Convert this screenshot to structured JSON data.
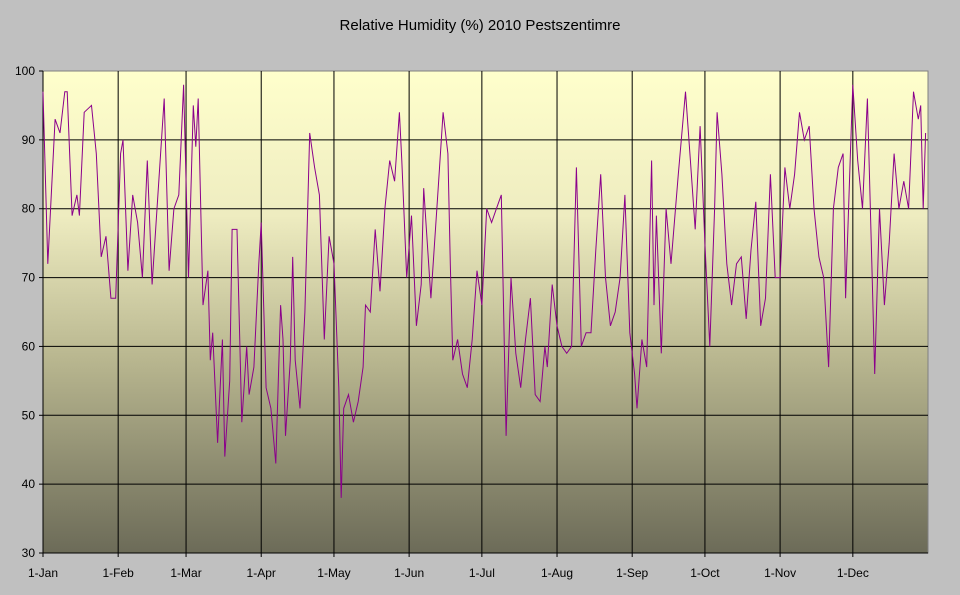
{
  "chart_data": {
    "type": "line",
    "title": "Relative Humidity (%) 2010 Pestszentimre",
    "xlabel": "",
    "ylabel": "",
    "ylim": [
      30,
      100
    ],
    "yticks": [
      30,
      40,
      50,
      60,
      70,
      80,
      90,
      100
    ],
    "xlim": [
      0,
      365
    ],
    "xticks": [
      {
        "day": 0,
        "label": "1-Jan"
      },
      {
        "day": 31,
        "label": "1-Feb"
      },
      {
        "day": 59,
        "label": "1-Mar"
      },
      {
        "day": 90,
        "label": "1-Apr"
      },
      {
        "day": 120,
        "label": "1-May"
      },
      {
        "day": 151,
        "label": "1-Jun"
      },
      {
        "day": 181,
        "label": "1-Jul"
      },
      {
        "day": 212,
        "label": "1-Aug"
      },
      {
        "day": 243,
        "label": "1-Sep"
      },
      {
        "day": 273,
        "label": "1-Oct"
      },
      {
        "day": 304,
        "label": "1-Nov"
      },
      {
        "day": 334,
        "label": "1-Dec"
      }
    ],
    "grid": true,
    "legend": "none",
    "series": [
      {
        "name": "Relative Humidity (%)",
        "color": "#8b008b",
        "points": [
          [
            0,
            97
          ],
          [
            2,
            72
          ],
          [
            5,
            93
          ],
          [
            7,
            91
          ],
          [
            9,
            97
          ],
          [
            10,
            97
          ],
          [
            12,
            79
          ],
          [
            14,
            82
          ],
          [
            15,
            79
          ],
          [
            17,
            94
          ],
          [
            20,
            95
          ],
          [
            22,
            88
          ],
          [
            24,
            73
          ],
          [
            26,
            76
          ],
          [
            28,
            67
          ],
          [
            30,
            67
          ],
          [
            32,
            88
          ],
          [
            33,
            90
          ],
          [
            35,
            71
          ],
          [
            37,
            82
          ],
          [
            39,
            78
          ],
          [
            41,
            70
          ],
          [
            43,
            87
          ],
          [
            45,
            69
          ],
          [
            47,
            80
          ],
          [
            50,
            96
          ],
          [
            52,
            71
          ],
          [
            54,
            80
          ],
          [
            56,
            82
          ],
          [
            58,
            98
          ],
          [
            60,
            70
          ],
          [
            62,
            95
          ],
          [
            63,
            89
          ],
          [
            64,
            96
          ],
          [
            66,
            66
          ],
          [
            68,
            71
          ],
          [
            69,
            58
          ],
          [
            70,
            62
          ],
          [
            72,
            46
          ],
          [
            74,
            61
          ],
          [
            75,
            44
          ],
          [
            77,
            55
          ],
          [
            78,
            77
          ],
          [
            80,
            77
          ],
          [
            82,
            49
          ],
          [
            84,
            60
          ],
          [
            85,
            53
          ],
          [
            87,
            57
          ],
          [
            89,
            72
          ],
          [
            90,
            78
          ],
          [
            92,
            54
          ],
          [
            94,
            51
          ],
          [
            96,
            43
          ],
          [
            98,
            66
          ],
          [
            99,
            61
          ],
          [
            100,
            47
          ],
          [
            102,
            58
          ],
          [
            103,
            73
          ],
          [
            104,
            58
          ],
          [
            106,
            51
          ],
          [
            108,
            65
          ],
          [
            110,
            91
          ],
          [
            112,
            86
          ],
          [
            114,
            82
          ],
          [
            116,
            61
          ],
          [
            118,
            76
          ],
          [
            120,
            72
          ],
          [
            122,
            54
          ],
          [
            123,
            38
          ],
          [
            124,
            51
          ],
          [
            126,
            53
          ],
          [
            128,
            49
          ],
          [
            130,
            52
          ],
          [
            132,
            57
          ],
          [
            133,
            66
          ],
          [
            135,
            65
          ],
          [
            137,
            77
          ],
          [
            139,
            68
          ],
          [
            141,
            80
          ],
          [
            143,
            87
          ],
          [
            145,
            84
          ],
          [
            147,
            94
          ],
          [
            148,
            87
          ],
          [
            150,
            70
          ],
          [
            152,
            79
          ],
          [
            154,
            63
          ],
          [
            156,
            69
          ],
          [
            157,
            83
          ],
          [
            160,
            67
          ],
          [
            163,
            83
          ],
          [
            165,
            94
          ],
          [
            167,
            88
          ],
          [
            168,
            72
          ],
          [
            169,
            58
          ],
          [
            171,
            61
          ],
          [
            173,
            56
          ],
          [
            175,
            54
          ],
          [
            177,
            61
          ],
          [
            179,
            71
          ],
          [
            181,
            66
          ],
          [
            183,
            80
          ],
          [
            185,
            78
          ],
          [
            187,
            80
          ],
          [
            189,
            82
          ],
          [
            191,
            47
          ],
          [
            193,
            70
          ],
          [
            195,
            59
          ],
          [
            197,
            54
          ],
          [
            199,
            61
          ],
          [
            201,
            67
          ],
          [
            203,
            53
          ],
          [
            205,
            52
          ],
          [
            207,
            60
          ],
          [
            208,
            57
          ],
          [
            210,
            69
          ],
          [
            212,
            63
          ],
          [
            214,
            60
          ],
          [
            216,
            59
          ],
          [
            218,
            60
          ],
          [
            220,
            86
          ],
          [
            222,
            60
          ],
          [
            224,
            62
          ],
          [
            226,
            62
          ],
          [
            228,
            74
          ],
          [
            230,
            85
          ],
          [
            232,
            70
          ],
          [
            234,
            63
          ],
          [
            236,
            65
          ],
          [
            238,
            70
          ],
          [
            240,
            82
          ],
          [
            242,
            62
          ],
          [
            244,
            56
          ],
          [
            245,
            51
          ],
          [
            247,
            61
          ],
          [
            249,
            57
          ],
          [
            251,
            87
          ],
          [
            252,
            66
          ],
          [
            253,
            79
          ],
          [
            255,
            59
          ],
          [
            257,
            80
          ],
          [
            259,
            72
          ],
          [
            262,
            85
          ],
          [
            265,
            97
          ],
          [
            267,
            87
          ],
          [
            269,
            77
          ],
          [
            271,
            92
          ],
          [
            273,
            75
          ],
          [
            275,
            60
          ],
          [
            277,
            80
          ],
          [
            278,
            94
          ],
          [
            280,
            85
          ],
          [
            282,
            72
          ],
          [
            284,
            66
          ],
          [
            286,
            72
          ],
          [
            288,
            73
          ],
          [
            290,
            64
          ],
          [
            292,
            74
          ],
          [
            294,
            81
          ],
          [
            296,
            63
          ],
          [
            298,
            67
          ],
          [
            300,
            85
          ],
          [
            302,
            70
          ],
          [
            304,
            70
          ],
          [
            306,
            86
          ],
          [
            308,
            80
          ],
          [
            310,
            85
          ],
          [
            312,
            94
          ],
          [
            314,
            90
          ],
          [
            316,
            92
          ],
          [
            318,
            80
          ],
          [
            320,
            73
          ],
          [
            322,
            70
          ],
          [
            324,
            57
          ],
          [
            326,
            80
          ],
          [
            328,
            86
          ],
          [
            330,
            88
          ],
          [
            331,
            67
          ],
          [
            333,
            88
          ],
          [
            334,
            98
          ],
          [
            336,
            87
          ],
          [
            338,
            80
          ],
          [
            340,
            96
          ],
          [
            342,
            70
          ],
          [
            343,
            56
          ],
          [
            345,
            80
          ],
          [
            347,
            66
          ],
          [
            349,
            75
          ],
          [
            351,
            88
          ],
          [
            353,
            80
          ],
          [
            355,
            84
          ],
          [
            357,
            80
          ],
          [
            359,
            97
          ],
          [
            361,
            93
          ],
          [
            362,
            95
          ],
          [
            363,
            80
          ],
          [
            364,
            91
          ]
        ]
      }
    ]
  }
}
